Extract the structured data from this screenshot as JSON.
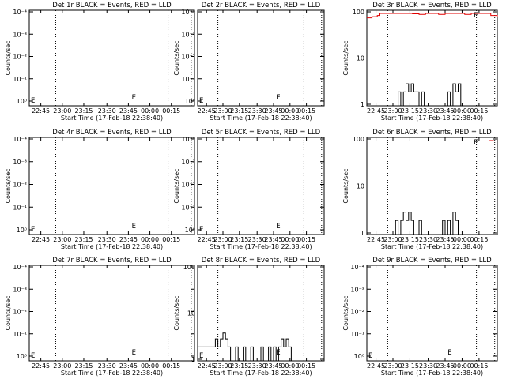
{
  "chart_data": [
    {
      "type": "line",
      "title": "Det 1r BLACK = Events, RED = LLD",
      "xlabel": "Start Time (17-Feb-18 22:38:40)",
      "ylabel": "Counts/sec",
      "scale": "log",
      "ylim_label": "1e-5 to 1",
      "yticks": [
        "10⁻⁴",
        "10⁻³",
        "10⁻²",
        "10⁻¹",
        "10⁰"
      ],
      "xticks": [
        "22:45",
        "23:00",
        "23:15",
        "23:30",
        "23:45",
        "00:00",
        "00:15"
      ],
      "markers": [
        "E",
        "E"
      ],
      "events": [],
      "lld": []
    },
    {
      "type": "line",
      "title": "Det 2r BLACK = Events, RED = LLD",
      "xlabel": "Start Time (17-Feb-18 22:38:40)",
      "ylabel": "Counts/sec",
      "scale": "log",
      "yticks": [
        "10⁻⁴",
        "10⁻³",
        "10⁻²",
        "10⁻¹",
        "10⁰"
      ],
      "xticks": [
        "22:45",
        "23:00",
        "23:15",
        "23:30",
        "23:45",
        "00:00",
        "00:15"
      ],
      "markers": [
        "E",
        "E"
      ],
      "events": [],
      "lld": []
    },
    {
      "type": "line",
      "title": "Det 3r BLACK = Events, RED = LLD",
      "xlabel": "Start Time (17-Feb-18 22:38:40)",
      "ylabel": "Counts/sec",
      "scale": "log",
      "yticks": [
        "100",
        "10",
        "1"
      ],
      "xticks": [
        "22:45",
        "23:00",
        "23:15",
        "23:30",
        "23:45",
        "00:00",
        "00:15"
      ],
      "markers": [
        "E"
      ],
      "events": [
        [
          0,
          1
        ],
        [
          0.22,
          1
        ],
        [
          0.24,
          2
        ],
        [
          0.26,
          1
        ],
        [
          0.28,
          2
        ],
        [
          0.3,
          3
        ],
        [
          0.32,
          2
        ],
        [
          0.34,
          3
        ],
        [
          0.36,
          2
        ],
        [
          0.38,
          2
        ],
        [
          0.4,
          1
        ],
        [
          0.42,
          2
        ],
        [
          0.44,
          1
        ],
        [
          0.6,
          1
        ],
        [
          0.62,
          2
        ],
        [
          0.64,
          1
        ],
        [
          0.66,
          3
        ],
        [
          0.68,
          2
        ],
        [
          0.7,
          3
        ],
        [
          0.72,
          1
        ],
        [
          0.74,
          1
        ],
        [
          1,
          1
        ]
      ],
      "lld": [
        [
          0,
          80
        ],
        [
          0.04,
          85
        ],
        [
          0.08,
          90
        ],
        [
          0.1,
          100
        ],
        [
          0.3,
          100
        ],
        [
          0.35,
          98
        ],
        [
          0.4,
          95
        ],
        [
          0.45,
          100
        ],
        [
          0.55,
          95
        ],
        [
          0.6,
          100
        ],
        [
          0.7,
          100
        ],
        [
          0.75,
          95
        ],
        [
          0.8,
          100
        ],
        [
          0.9,
          100
        ],
        [
          0.95,
          90
        ],
        [
          1,
          85
        ]
      ]
    },
    {
      "type": "line",
      "title": "Det 4r BLACK = Events, RED = LLD",
      "xlabel": "Start Time (17-Feb-18 22:38:40)",
      "ylabel": "Counts/sec",
      "scale": "log",
      "yticks": [
        "10⁻⁴",
        "10⁻³",
        "10⁻²",
        "10⁻¹",
        "10⁰"
      ],
      "xticks": [
        "22:45",
        "23:00",
        "23:15",
        "23:30",
        "23:45",
        "00:00",
        "00:15"
      ],
      "markers": [
        "E",
        "E"
      ],
      "events": [],
      "lld": []
    },
    {
      "type": "line",
      "title": "Det 5r BLACK = Events, RED = LLD",
      "xlabel": "Start Time (17-Feb-18 22:38:40)",
      "ylabel": "Counts/sec",
      "scale": "log",
      "yticks": [
        "10⁻⁴",
        "10⁻³",
        "10⁻²",
        "10⁻¹",
        "10⁰"
      ],
      "xticks": [
        "22:45",
        "23:00",
        "23:15",
        "23:30",
        "23:45",
        "00:00",
        "00:15"
      ],
      "markers": [
        "E",
        "E"
      ],
      "events": [],
      "lld": []
    },
    {
      "type": "line",
      "title": "Det 6r BLACK = Events, RED = LLD",
      "xlabel": "Start Time (17-Feb-18 22:38:40)",
      "ylabel": "Counts/sec",
      "scale": "log",
      "yticks": [
        "100",
        "10",
        "1"
      ],
      "xticks": [
        "22:45",
        "23:00",
        "23:15",
        "23:30",
        "23:45",
        "00:00",
        "00:15"
      ],
      "markers": [
        "E"
      ],
      "events": [
        [
          0,
          1
        ],
        [
          0.2,
          1
        ],
        [
          0.22,
          2
        ],
        [
          0.24,
          1
        ],
        [
          0.26,
          2
        ],
        [
          0.28,
          3
        ],
        [
          0.3,
          2
        ],
        [
          0.32,
          3
        ],
        [
          0.34,
          2
        ],
        [
          0.36,
          1
        ],
        [
          0.4,
          2
        ],
        [
          0.42,
          1
        ],
        [
          0.55,
          1
        ],
        [
          0.58,
          2
        ],
        [
          0.6,
          1
        ],
        [
          0.62,
          2
        ],
        [
          0.64,
          1
        ],
        [
          0.66,
          3
        ],
        [
          0.68,
          2
        ],
        [
          0.7,
          1
        ],
        [
          1,
          1
        ]
      ],
      "lld": [
        [
          0.94,
          100
        ],
        [
          0.97,
          98
        ],
        [
          1,
          100
        ]
      ]
    },
    {
      "type": "line",
      "title": "Det 7r BLACK = Events, RED = LLD",
      "xlabel": "Start Time (17-Feb-18 22:38:40)",
      "ylabel": "Counts/sec",
      "scale": "log",
      "yticks": [
        "10⁻⁴",
        "10⁻³",
        "10⁻²",
        "10⁻¹",
        "10⁰"
      ],
      "xticks": [
        "22:45",
        "23:00",
        "23:15",
        "23:30",
        "23:45",
        "00:00",
        "00:15"
      ],
      "markers": [
        "E",
        "E"
      ],
      "events": [],
      "lld": []
    },
    {
      "type": "line",
      "title": "Det 8r BLACK = Events, RED = LLD",
      "xlabel": "Start Time (17-Feb-18 22:38:40)",
      "ylabel": "Counts/sec",
      "scale": "log",
      "yticks": [
        "100",
        "10",
        "1"
      ],
      "xticks": [
        "22:45",
        "23:00",
        "23:15",
        "23:30",
        "23:45",
        "00:00",
        "00:15"
      ],
      "markers": [
        "E",
        "E"
      ],
      "events": [
        [
          0,
          2
        ],
        [
          0.12,
          2
        ],
        [
          0.14,
          3
        ],
        [
          0.16,
          2
        ],
        [
          0.18,
          3
        ],
        [
          0.2,
          4
        ],
        [
          0.22,
          3
        ],
        [
          0.24,
          2
        ],
        [
          0.26,
          1
        ],
        [
          0.3,
          2
        ],
        [
          0.32,
          1
        ],
        [
          0.36,
          2
        ],
        [
          0.38,
          1
        ],
        [
          0.42,
          2
        ],
        [
          0.44,
          1
        ],
        [
          0.5,
          2
        ],
        [
          0.52,
          1
        ],
        [
          0.56,
          2
        ],
        [
          0.58,
          1
        ],
        [
          0.6,
          2
        ],
        [
          0.62,
          1
        ],
        [
          0.64,
          2
        ],
        [
          0.66,
          3
        ],
        [
          0.68,
          2
        ],
        [
          0.7,
          3
        ],
        [
          0.72,
          2
        ],
        [
          0.74,
          1
        ],
        [
          1,
          1
        ]
      ],
      "lld": []
    },
    {
      "type": "line",
      "title": "Det 9r BLACK = Events, RED = LLD",
      "xlabel": "Start Time (17-Feb-18 22:38:40)",
      "ylabel": "Counts/sec",
      "scale": "log",
      "yticks": [
        "10⁻⁴",
        "10⁻³",
        "10⁻²",
        "10⁻¹",
        "10⁰"
      ],
      "xticks": [
        "22:45",
        "23:00",
        "23:15",
        "23:30",
        "23:45",
        "00:00",
        "00:15"
      ],
      "markers": [
        "E",
        "E"
      ],
      "events": [],
      "lld": []
    }
  ]
}
